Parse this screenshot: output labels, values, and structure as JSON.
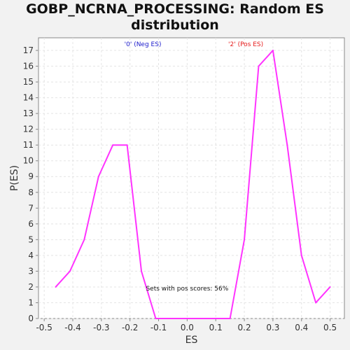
{
  "chart_data": {
    "type": "line",
    "title": "GOBP_NCRNA_PROCESSING: Random ES distribution",
    "xlabel": "ES",
    "ylabel": "P(ES)",
    "xlim": [
      -0.52,
      0.55
    ],
    "ylim": [
      0,
      17.8
    ],
    "x_ticks": [
      -0.5,
      -0.4,
      -0.3,
      -0.2,
      -0.1,
      0.0,
      0.1,
      0.2,
      0.3,
      0.4,
      0.5
    ],
    "x_tick_labels": [
      "-0.5",
      "-0.4",
      "-0.3",
      "-0.2",
      "-0.1",
      "0.0",
      "0.1",
      "0.2",
      "0.3",
      "0.4",
      "0.5"
    ],
    "y_ticks": [
      0,
      1,
      2,
      3,
      4,
      5,
      6,
      7,
      8,
      9,
      10,
      11,
      12,
      13,
      14,
      15,
      16,
      17
    ],
    "y_tick_labels": [
      "0",
      "1",
      "2",
      "3",
      "4",
      "5",
      "6",
      "7",
      "8",
      "9",
      "10",
      "11",
      "12",
      "13",
      "14",
      "15",
      "16",
      "17"
    ],
    "grid": true,
    "series": [
      {
        "color": "#ff33ff",
        "x": [
          -0.46,
          -0.41,
          -0.36,
          -0.31,
          -0.26,
          -0.21,
          -0.16,
          -0.11,
          -0.06,
          0.0,
          0.05,
          0.1,
          0.15,
          0.2,
          0.25,
          0.3,
          0.35,
          0.4,
          0.45,
          0.5
        ],
        "y": [
          2,
          3,
          5,
          9,
          11,
          11,
          3,
          0,
          0,
          0,
          0,
          0,
          0,
          5,
          16,
          17,
          11,
          4,
          1,
          2
        ]
      }
    ],
    "annotations": [
      {
        "text": "'0' (Neg ES)",
        "color": "#1a1acc",
        "x": -0.155,
        "y": 17.4
      },
      {
        "text": "'2' (Pos ES)",
        "color": "#e61a1a",
        "x": 0.205,
        "y": 17.4
      },
      {
        "text": "Sets with pos scores: 56%",
        "color": "#111111",
        "x": 0.0,
        "y": 1.9
      }
    ]
  },
  "colors": {
    "page_background": "#f2f2f2",
    "plot_background": "#ffffff",
    "grid": "#e4e4e4",
    "axis": "#888888",
    "line": "#ff33ff"
  }
}
